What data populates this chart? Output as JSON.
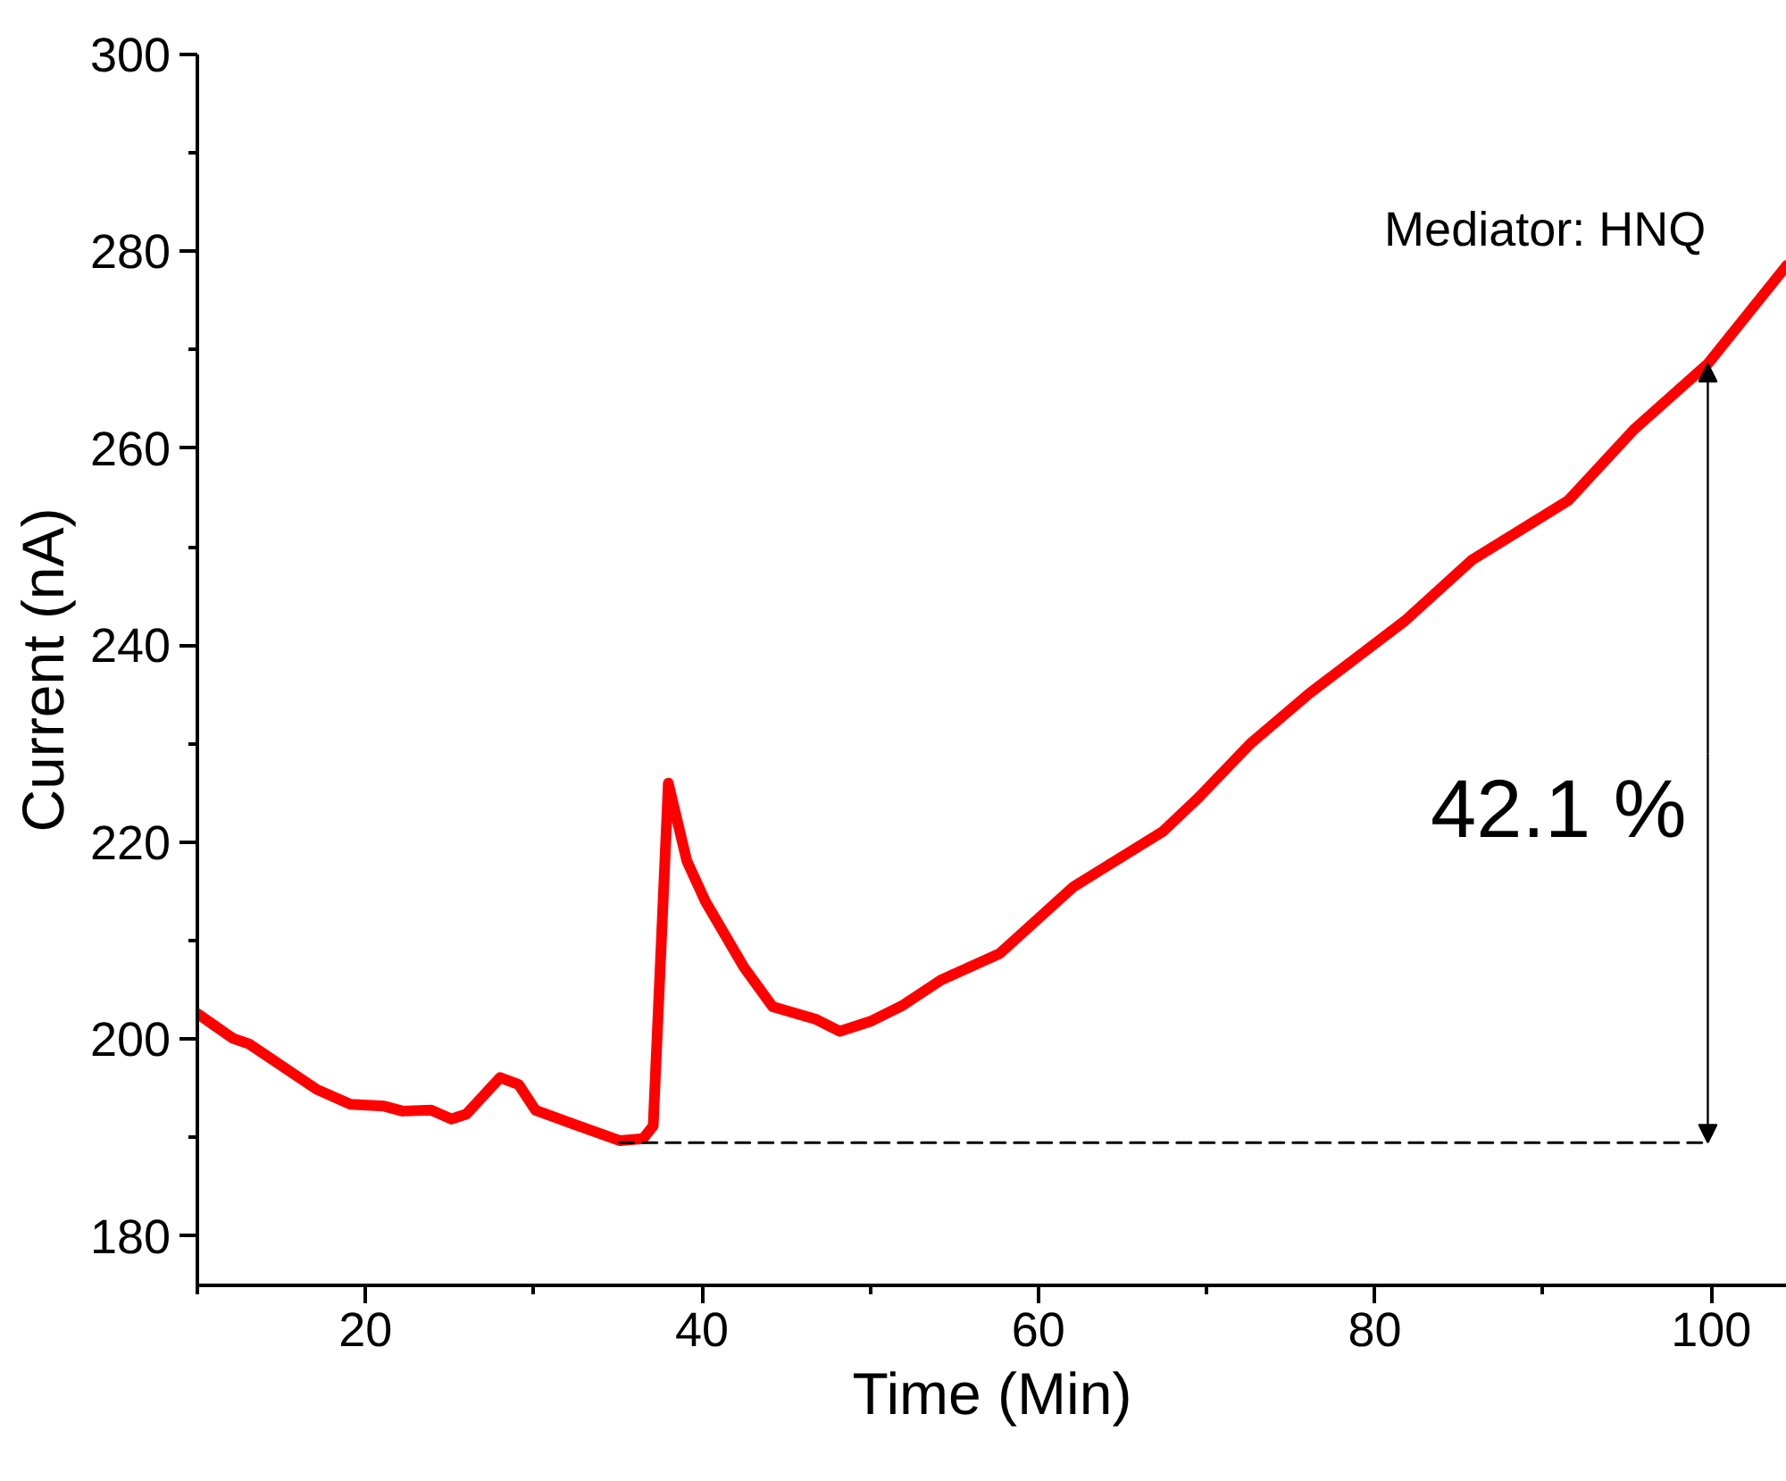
{
  "chart_data": {
    "type": "line",
    "xlabel": "Time (Min)",
    "ylabel": "Current (nA)",
    "xlim": [
      10,
      104.5
    ],
    "xticks": [
      20,
      40,
      60,
      80,
      100
    ],
    "ylim": [
      175,
      300
    ],
    "yticks": [
      180,
      200,
      220,
      240,
      260,
      280,
      300
    ],
    "grid": false,
    "marker": "none",
    "line_style": "solid",
    "series": [
      {
        "color": "#ff0000",
        "x": [
          10,
          12.1,
          13.1,
          17.1,
          19.1,
          21.1,
          22.2,
          23.9,
          25.1,
          26,
          28,
          29.1,
          30.1,
          32.5,
          35.1,
          36.5,
          37.1,
          38,
          39.1,
          40.2,
          42.5,
          44.2,
          46.8,
          48.2,
          50,
          51.9,
          54.2,
          57.7,
          62.1,
          67.4,
          69.5,
          72.6,
          76.1,
          81.8,
          85.8,
          91.5,
          95.4,
          99.8,
          104.5
        ],
        "values": [
          202.6,
          200.1,
          199.5,
          194.9,
          193.4,
          193.2,
          192.7,
          192.8,
          191.9,
          192.4,
          196.1,
          195.4,
          192.8,
          191.3,
          189.7,
          189.9,
          191.2,
          226,
          218.1,
          214,
          207.3,
          203.3,
          202,
          200.8,
          201.8,
          203.4,
          206,
          208.7,
          215.5,
          221.1,
          224.5,
          230,
          235.1,
          242.5,
          248.7,
          254.7,
          261.9,
          268.6,
          278.6
        ]
      },
      {
        "color": "#000000",
        "type": "line",
        "line_style": "dashed",
        "x": [
          35.1,
          99.8
        ],
        "values": [
          189.5,
          189.5
        ]
      }
    ],
    "annotations": [
      "Mediator: HNQ",
      {
        "text": "42.1 %",
        "x": 99.8,
        "y": 268.6
      }
    ]
  }
}
